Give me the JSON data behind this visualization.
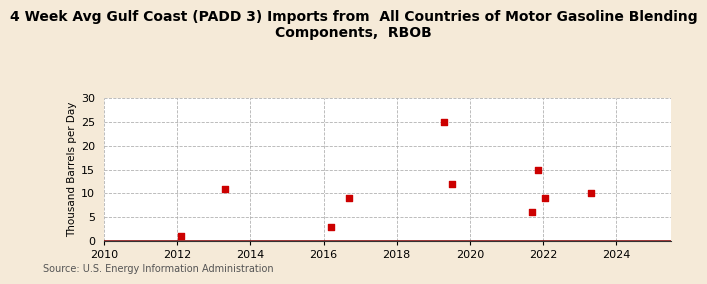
{
  "title_line1": "4 Week Avg Gulf Coast (PADD 3) Imports from  All Countries of Motor Gasoline Blending",
  "title_line2": "Components,  RBOB",
  "ylabel": "Thousand Barrels per Day",
  "source": "Source: U.S. Energy Information Administration",
  "xlim": [
    2010,
    2025.5
  ],
  "ylim": [
    0,
    30
  ],
  "yticks": [
    0,
    5,
    10,
    15,
    20,
    25,
    30
  ],
  "xticks": [
    2010,
    2012,
    2014,
    2016,
    2018,
    2020,
    2022,
    2024
  ],
  "scatter_x": [
    2012.1,
    2013.3,
    2016.2,
    2016.7,
    2019.3,
    2019.5,
    2021.7,
    2021.85,
    2022.05,
    2023.3
  ],
  "scatter_y": [
    1,
    11,
    3,
    9,
    25,
    12,
    6,
    15,
    9,
    10
  ],
  "marker_color": "#cc0000",
  "marker_size": 18,
  "background_color": "#f5ead8",
  "plot_bg_color": "#ffffff",
  "grid_color": "#aaaaaa",
  "zero_line_color": "#800000",
  "title_fontsize": 10,
  "label_fontsize": 7.5,
  "tick_fontsize": 8,
  "source_fontsize": 7
}
